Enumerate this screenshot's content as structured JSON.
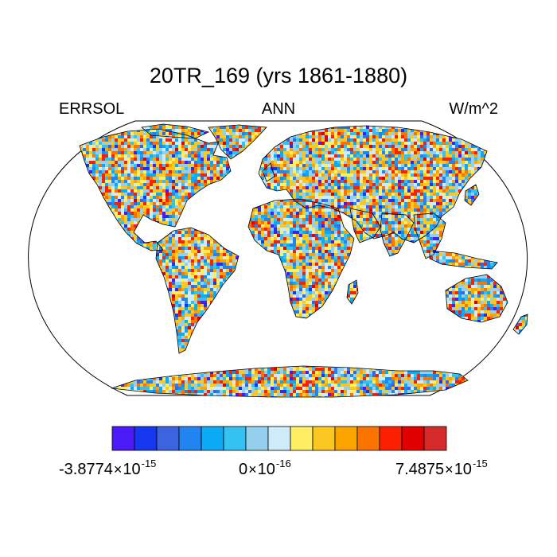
{
  "title": "20TR_169 (yrs 1861-1880)",
  "subtitle_left": "ERRSOL",
  "subtitle_center": "ANN",
  "subtitle_right": "W/m^2",
  "colorbar": {
    "colors": [
      "#4a1bf7",
      "#1637f0",
      "#3c64e0",
      "#2184f0",
      "#0aaaf5",
      "#34c2f2",
      "#95cfee",
      "#cfeaf8",
      "#fdee63",
      "#fbc822",
      "#fba400",
      "#fb7300",
      "#fb2100",
      "#e00000",
      "#d42a2a"
    ],
    "min_mantissa": "-3.8774",
    "min_exponent": "-15",
    "mid_mantissa": "0",
    "mid_exponent": "-16",
    "max_mantissa": "7.4875",
    "max_exponent": "-15",
    "times": "×",
    "base": "10"
  },
  "map": {
    "projection": "Robinson",
    "field": "ERRSOL",
    "period": "ANN",
    "pattern": "noisy pixel field over land only"
  }
}
